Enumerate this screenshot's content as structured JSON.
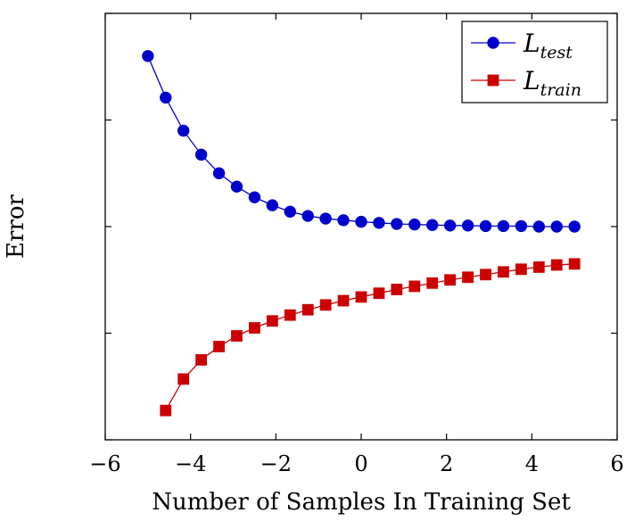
{
  "chart_data": {
    "type": "line",
    "xlabel": "Number of Samples In Training Set",
    "ylabel": "Error",
    "xlim": [
      -6,
      6
    ],
    "ylim": [
      -4.0,
      4.0
    ],
    "x_ticks": [
      -6,
      -4,
      -2,
      0,
      2,
      4,
      6
    ],
    "x_tick_labels": [
      "−6",
      "−4",
      "−2",
      "0",
      "2",
      "4",
      "6"
    ],
    "y_ticks": [
      -4,
      -2,
      0,
      2,
      4
    ],
    "y_tick_labels_shown": false,
    "grid": false,
    "legend_position": "top-right",
    "series": [
      {
        "name": "L",
        "name_subscript": "test",
        "color": "#0000cc",
        "marker": "circle",
        "x": [
          -5.0,
          -4.583,
          -4.167,
          -3.75,
          -3.333,
          -2.917,
          -2.5,
          -2.083,
          -1.667,
          -1.25,
          -0.833,
          -0.417,
          0.0,
          0.417,
          0.833,
          1.25,
          1.667,
          2.083,
          2.5,
          2.917,
          3.333,
          3.75,
          4.167,
          4.583,
          5.0
        ],
        "y": [
          3.2,
          2.42,
          1.8,
          1.35,
          1.0,
          0.75,
          0.55,
          0.4,
          0.28,
          0.2,
          0.15,
          0.12,
          0.09,
          0.07,
          0.05,
          0.04,
          0.03,
          0.02,
          0.02,
          0.01,
          0.01,
          0.01,
          0.0,
          0.0,
          0.0
        ]
      },
      {
        "name": "L",
        "name_subscript": "train",
        "color": "#cc0000",
        "marker": "square",
        "x": [
          -4.583,
          -4.167,
          -3.75,
          -3.333,
          -2.917,
          -2.5,
          -2.083,
          -1.667,
          -1.25,
          -0.833,
          -0.417,
          0.0,
          0.417,
          0.833,
          1.25,
          1.667,
          2.083,
          2.5,
          2.917,
          3.333,
          3.75,
          4.167,
          4.583,
          5.0
        ],
        "y": [
          -3.45,
          -2.86,
          -2.5,
          -2.25,
          -2.05,
          -1.9,
          -1.77,
          -1.66,
          -1.56,
          -1.47,
          -1.39,
          -1.32,
          -1.25,
          -1.18,
          -1.12,
          -1.06,
          -1.0,
          -0.95,
          -0.9,
          -0.85,
          -0.8,
          -0.76,
          -0.72,
          -0.7
        ]
      }
    ]
  }
}
